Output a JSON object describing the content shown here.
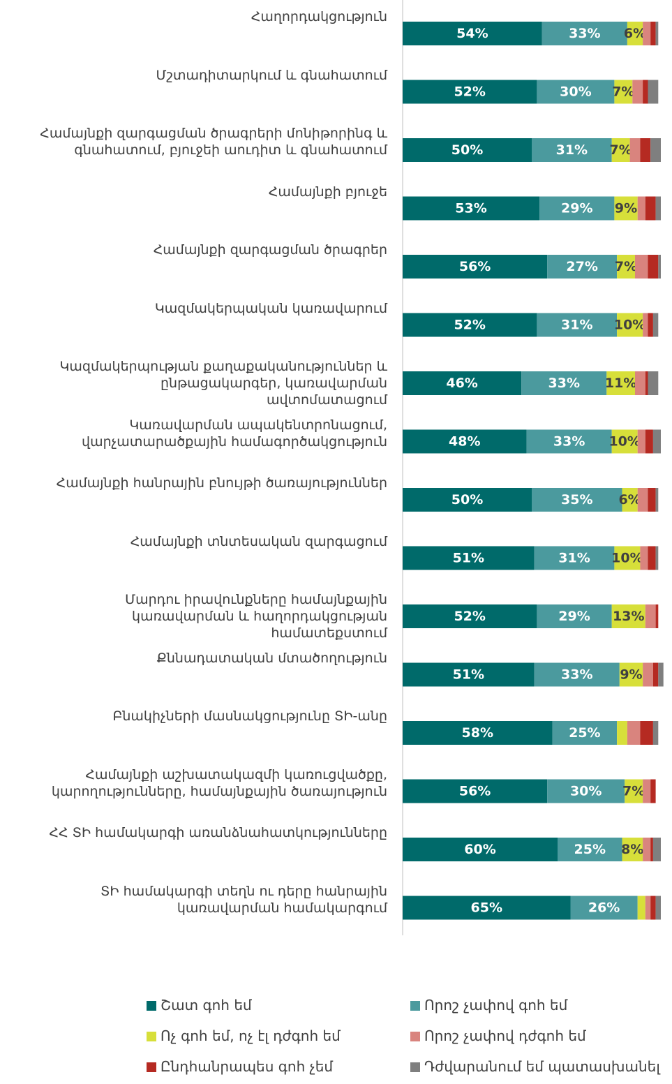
{
  "chart_data": {
    "type": "stacked-barh",
    "categories": [
      "Հաղորդակցություն",
      "Մշտադիտարկում և գնահատում",
      "Համայնքի զարգացման ծրագրերի մոնիթորինգ և\nգնահատում, բյուջեի աուդիտ և գնահատում",
      "Համայնքի բյուջե",
      "Համայնքի զարգացման ծրագրեր",
      "Կազմակերպական կառավարում",
      "Կազմակերպության քաղաքականություններ և\nընթացակարգեր, կառավարման\nավտոմատացում",
      "Կառավարման ապակենտրոնացում,\nվարչատարածքային համագործակցություն",
      "Համայնքի հանրային բնույթի ծառայություններ",
      "Համայնքի տնտեսական զարգացում",
      "Մարդու իրավունքները համայնքային\nկառավարման և հաղորդակցության\nհամատեքստում",
      "Քննադատական մտածողություն",
      "Բնակիչների մասնակցությունը ՏԻ-անը",
      "Համայնքի աշխատակազմի կառուցվածքը,\nկարողությունները, համայնքային ծառայություն",
      "ՀՀ ՏԻ համակարգի առանձնահատկությունները",
      "ՏԻ համակարգի տեղն ու դերը հանրային\nկառավարման համակարգում"
    ],
    "xlim": [
      0,
      100
    ],
    "series": [
      {
        "name": "Շատ գոհ եմ",
        "color": "#006a6a",
        "values": [
          54,
          52,
          50,
          53,
          56,
          52,
          46,
          48,
          50,
          51,
          52,
          51,
          58,
          56,
          60,
          65
        ],
        "value_labels": [
          "54%",
          "52%",
          "50%",
          "53%",
          "56%",
          "52%",
          "46%",
          "48%",
          "50%",
          "51%",
          "52%",
          "51%",
          "58%",
          "56%",
          "60%",
          "65%"
        ]
      },
      {
        "name": "Որոշ չափով գոհ եմ",
        "color": "#4b9a9e",
        "values": [
          33,
          30,
          31,
          29,
          27,
          31,
          33,
          33,
          35,
          31,
          29,
          33,
          25,
          30,
          25,
          26
        ],
        "value_labels": [
          "33%",
          "30%",
          "31%",
          "29%",
          "27%",
          "31%",
          "33%",
          "33%",
          "35%",
          "31%",
          "29%",
          "33%",
          "25%",
          "30%",
          "25%",
          "26%"
        ]
      },
      {
        "name": "Ոչ գոհ եմ, ոչ էլ դժգոհ եմ",
        "color": "#d7df3a",
        "values": [
          6,
          7,
          7,
          9,
          7,
          10,
          11,
          10,
          6,
          10,
          13,
          9,
          4,
          7,
          8,
          3
        ],
        "value_labels": [
          "6%",
          "7%",
          "7%",
          "9%",
          "7%",
          "10%",
          "11%",
          "10%",
          "6%",
          "10%",
          "13%",
          "9%",
          null,
          "7%",
          "8%",
          null
        ]
      },
      {
        "name": "Որոշ չափով դժգոհ եմ",
        "color": "#d9847e",
        "values": [
          3,
          4,
          4,
          3,
          5,
          2,
          4,
          3,
          4,
          3,
          4,
          4,
          5,
          3,
          3,
          2
        ]
      },
      {
        "name": "Ընդհանրապես գոհ չեմ",
        "color": "#b52a22",
        "values": [
          2,
          2,
          4,
          4,
          4,
          2,
          1,
          3,
          3,
          3,
          1,
          2,
          5,
          2,
          1,
          2
        ]
      },
      {
        "name": "Դժվարանում եմ պատասխանել",
        "color": "#7f7f7f",
        "values": [
          1,
          4,
          4,
          2,
          1,
          2,
          4,
          3,
          1,
          1,
          0,
          2,
          2,
          0,
          3,
          2
        ]
      }
    ]
  }
}
